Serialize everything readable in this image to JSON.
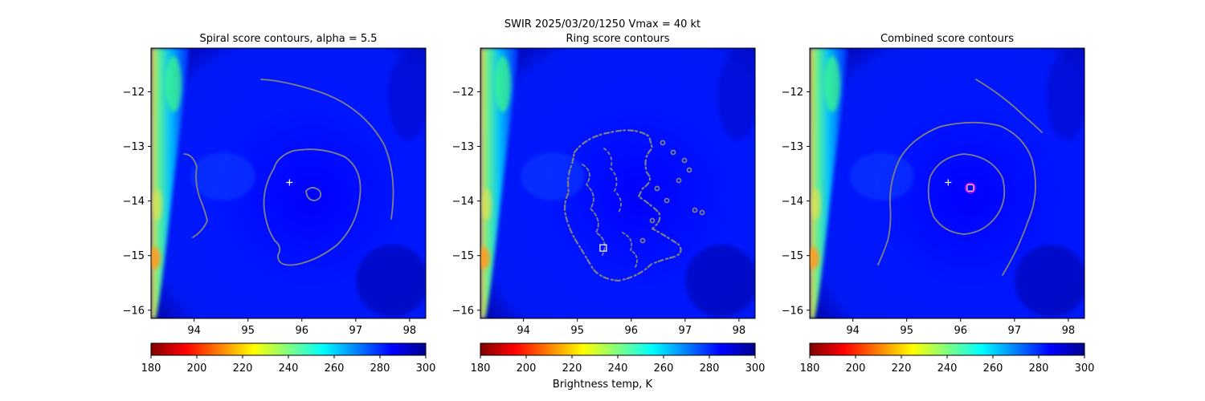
{
  "suptitle": "SWIR  2025/03/20/1250    Vmax = 40 kt",
  "colorbar": {
    "label": "Brightness temp, K",
    "ticks": [
      180,
      200,
      220,
      240,
      260,
      280,
      300
    ],
    "range": [
      180,
      300
    ],
    "colormap": "jet_r",
    "colors": [
      "#800000",
      "#ff0000",
      "#ff8000",
      "#ffff00",
      "#80ff80",
      "#00ffff",
      "#0080ff",
      "#0000ff",
      "#000090"
    ]
  },
  "chart_data": [
    {
      "type": "heatmap",
      "title": "Spiral score contours, alpha =  5.5",
      "xlim": [
        93.2,
        98.3
      ],
      "ylim": [
        -16.15,
        -11.2
      ],
      "xticks": [
        94,
        95,
        96,
        97,
        98
      ],
      "yticks": [
        -12,
        -13,
        -14,
        -15,
        -16
      ],
      "contour_color": "#808080",
      "markers": [
        {
          "symbol": "+",
          "x": 95.77,
          "y": -13.66,
          "color": "#ffffff"
        }
      ]
    },
    {
      "type": "heatmap",
      "title": "Ring score contours",
      "xlim": [
        93.2,
        98.3
      ],
      "ylim": [
        -16.15,
        -11.2
      ],
      "xticks": [
        94,
        95,
        96,
        97,
        98
      ],
      "yticks": [
        -12,
        -13,
        -14,
        -15,
        -16
      ],
      "contour_color": "#808080",
      "markers": [
        {
          "symbol": "square",
          "x": 95.48,
          "y": -14.86,
          "color": "#ffffff"
        }
      ]
    },
    {
      "type": "heatmap",
      "title": "Combined score contours",
      "xlim": [
        93.2,
        98.3
      ],
      "ylim": [
        -16.15,
        -11.2
      ],
      "xticks": [
        94,
        95,
        96,
        97,
        98
      ],
      "yticks": [
        -12,
        -13,
        -14,
        -15,
        -16
      ],
      "contour_color": "#808080",
      "markers": [
        {
          "symbol": "+",
          "x": 95.77,
          "y": -13.66,
          "color": "#ffffff"
        },
        {
          "symbol": "square",
          "x": 96.18,
          "y": -13.76,
          "color": "#ffffff"
        },
        {
          "symbol": "circle",
          "x": 96.18,
          "y": -13.76,
          "color": "#ff00ff"
        }
      ]
    }
  ]
}
